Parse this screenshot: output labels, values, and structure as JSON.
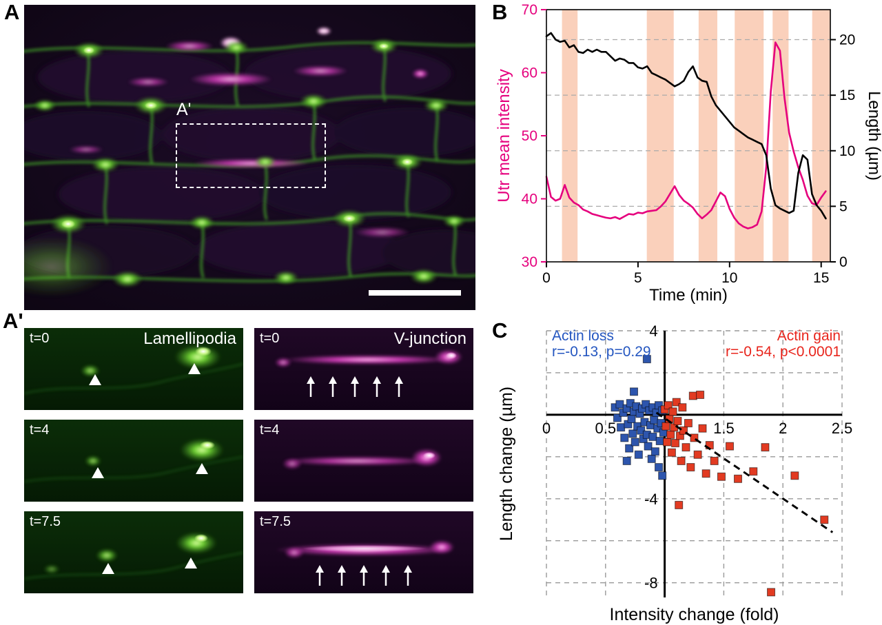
{
  "figure": {
    "panel_a_label": "A",
    "panel_a_inset_label": "A'",
    "panel_a_prime_label": "A'",
    "panel_b_label": "B",
    "panel_c_label": "C"
  },
  "a_prime": {
    "left_title": "Lamellipodia",
    "right_title": "V-junction",
    "timepoints": [
      "t=0",
      "t=4",
      "t=7.5"
    ]
  },
  "icons": {
    "arrowhead": "white-up-triangle-marker",
    "up_arrow": "white-up-arrow-marker"
  },
  "colors": {
    "magenta_channel": "#cc3bb4",
    "green_channel": "#6fcf33",
    "band": "#fad0bb",
    "utr_line": "#e5007d",
    "length_line": "#000000",
    "actin_loss": "#2d55ad",
    "actin_gain": "#e23b22"
  },
  "chart_data": [
    {
      "id": "utr-length-timecourse",
      "type": "line",
      "title": "",
      "xlabel": "Time (min)",
      "ylabel_left": "Utr mean intensity",
      "ylabel_right": "Length (µm)",
      "xlim": [
        0,
        15.5
      ],
      "ylim_left": [
        30,
        70
      ],
      "ylim_right": [
        0,
        22.7
      ],
      "xticks": [
        0,
        5,
        10,
        15
      ],
      "yticks_left": [
        30,
        40,
        50,
        60,
        70
      ],
      "yticks_right": [
        0,
        5,
        10,
        15,
        20
      ],
      "grid": "dashed-horizontal-at-right-ticks",
      "left_axis_color": "#e5007d",
      "right_axis_color": "#000000",
      "band_color": "#fad0bb",
      "shaded_bands_x": [
        [
          0.85,
          1.7
        ],
        [
          5.48,
          6.95
        ],
        [
          8.31,
          9.33
        ],
        [
          10.28,
          11.86
        ],
        [
          12.35,
          13.22
        ],
        [
          14.51,
          15.5
        ]
      ],
      "x": {
        "start": 0,
        "step": 0.25,
        "n": 62
      },
      "series": [
        {
          "name": "Utr mean intensity",
          "axis": "left",
          "color": "#e5007d",
          "values": [
            43.5,
            40.3,
            39.7,
            40.0,
            42.2,
            40.2,
            39.4,
            39.0,
            38.3,
            38.0,
            37.6,
            37.4,
            37.2,
            37.0,
            36.9,
            37.1,
            36.8,
            37.2,
            37.6,
            37.5,
            37.8,
            37.7,
            38.0,
            38.1,
            38.2,
            38.8,
            39.6,
            40.8,
            42.0,
            40.6,
            39.7,
            39.2,
            38.6,
            37.6,
            36.9,
            37.5,
            38.2,
            39.6,
            41.0,
            40.4,
            38.4,
            37.0,
            36.1,
            35.6,
            35.3,
            35.5,
            35.9,
            38.0,
            45.0,
            57.0,
            64.8,
            63.5,
            56.0,
            50.5,
            47.5,
            45.0,
            43.0,
            40.5,
            39.3,
            39.0,
            40.2,
            41.2
          ]
        },
        {
          "name": "Length",
          "axis": "right",
          "color": "#000000",
          "values": [
            20.3,
            20.6,
            20.0,
            19.8,
            19.9,
            19.3,
            19.5,
            18.9,
            18.8,
            19.1,
            18.9,
            19.1,
            18.9,
            18.9,
            18.5,
            18.1,
            18.3,
            18.2,
            17.9,
            17.9,
            17.5,
            17.4,
            17.6,
            17.0,
            16.8,
            16.6,
            16.4,
            16.1,
            15.8,
            16.0,
            16.3,
            17.1,
            17.6,
            16.6,
            16.3,
            16.2,
            14.9,
            14.1,
            13.6,
            13.1,
            12.6,
            12.1,
            11.8,
            11.5,
            11.2,
            11.0,
            10.8,
            10.6,
            9.6,
            6.6,
            5.1,
            4.8,
            4.6,
            4.4,
            4.6,
            8.0,
            9.6,
            9.2,
            6.1,
            5.1,
            4.6,
            3.9
          ]
        }
      ]
    },
    {
      "id": "length-vs-intensity-scatter",
      "type": "scatter",
      "title": "",
      "xlabel": "Intensity change (fold)",
      "ylabel": "Length change (µm)",
      "xlim": [
        0,
        2.5
      ],
      "ylim": [
        -8.7,
        4
      ],
      "xticks": [
        0,
        0.5,
        1,
        1.5,
        2,
        2.5
      ],
      "xtick_labels": [
        "0",
        "0.5",
        "",
        "1.5",
        "2",
        "2.5"
      ],
      "yticks": [
        4,
        2,
        0,
        -2,
        -4,
        -6,
        -8
      ],
      "ytick_labels": [
        "4",
        "",
        "",
        "",
        "-4",
        "",
        "-8"
      ],
      "axes_cross": [
        1,
        0
      ],
      "grid": "dashed",
      "trendline": {
        "x": [
          0.93,
          2.42
        ],
        "y": [
          0.1,
          -5.6
        ],
        "style": "dashed",
        "color": "#000000"
      },
      "series": [
        {
          "name": "Actin loss",
          "stats": "r=-0.13, p=0.29",
          "color": "#2d55ad",
          "label_color": "#2456c0",
          "points": [
            [
              0.58,
              0.35
            ],
            [
              0.6,
              -0.15
            ],
            [
              0.62,
              0.5
            ],
            [
              0.63,
              -0.6
            ],
            [
              0.65,
              0.1
            ],
            [
              0.66,
              -1.1
            ],
            [
              0.68,
              0.3
            ],
            [
              0.69,
              -0.45
            ],
            [
              0.7,
              -1.6
            ],
            [
              0.71,
              0.55
            ],
            [
              0.72,
              -0.2
            ],
            [
              0.73,
              -0.9
            ],
            [
              0.74,
              0.15
            ],
            [
              0.74,
              1.1
            ],
            [
              0.75,
              -1.3
            ],
            [
              0.76,
              0.4
            ],
            [
              0.77,
              -0.55
            ],
            [
              0.78,
              -1.9
            ],
            [
              0.79,
              0.05
            ],
            [
              0.8,
              -0.75
            ],
            [
              0.81,
              0.3
            ],
            [
              0.82,
              -1.15
            ],
            [
              0.83,
              -0.35
            ],
            [
              0.84,
              0.5
            ],
            [
              0.85,
              2.65
            ],
            [
              0.85,
              -0.95
            ],
            [
              0.86,
              -1.5
            ],
            [
              0.87,
              0.2
            ],
            [
              0.88,
              -0.5
            ],
            [
              0.89,
              -2.1
            ],
            [
              0.9,
              0.35
            ],
            [
              0.9,
              -1.05
            ],
            [
              0.91,
              -0.25
            ],
            [
              0.92,
              -1.75
            ],
            [
              0.93,
              0.1
            ],
            [
              0.94,
              -0.65
            ],
            [
              0.95,
              -2.5
            ],
            [
              0.95,
              0.45
            ],
            [
              0.96,
              -1.25
            ],
            [
              0.97,
              -0.4
            ],
            [
              0.98,
              -2.9
            ],
            [
              0.98,
              0.2
            ],
            [
              0.99,
              -0.85
            ],
            [
              0.68,
              -2.2
            ]
          ]
        },
        {
          "name": "Actin gain",
          "stats": "r=-0.54, p<0.0001",
          "color": "#e23b22",
          "label_color": "#e8251c",
          "points": [
            [
              1.0,
              0.25
            ],
            [
              1.01,
              -0.55
            ],
            [
              1.02,
              -1.3
            ],
            [
              1.03,
              0.45
            ],
            [
              1.04,
              -0.2
            ],
            [
              1.05,
              -0.95
            ],
            [
              1.06,
              -1.8
            ],
            [
              1.07,
              0.15
            ],
            [
              1.08,
              -0.6
            ],
            [
              1.09,
              -1.35
            ],
            [
              1.1,
              0.6
            ],
            [
              1.11,
              -0.3
            ],
            [
              1.12,
              -4.3
            ],
            [
              1.13,
              -1.0
            ],
            [
              1.14,
              -2.2
            ],
            [
              1.15,
              0.35
            ],
            [
              1.16,
              -0.75
            ],
            [
              1.18,
              -1.55
            ],
            [
              1.2,
              -0.4
            ],
            [
              1.22,
              -2.5
            ],
            [
              1.24,
              0.9
            ],
            [
              1.25,
              -1.1
            ],
            [
              1.28,
              -1.9
            ],
            [
              1.3,
              0.95
            ],
            [
              1.32,
              -0.65
            ],
            [
              1.35,
              -2.8
            ],
            [
              1.38,
              -1.45
            ],
            [
              1.42,
              -2.2
            ],
            [
              1.48,
              -2.95
            ],
            [
              1.55,
              -1.5
            ],
            [
              1.62,
              -3.05
            ],
            [
              1.75,
              -2.7
            ],
            [
              1.85,
              -1.55
            ],
            [
              2.1,
              -2.9
            ],
            [
              2.35,
              -5.0
            ],
            [
              1.9,
              -8.45
            ]
          ]
        }
      ]
    }
  ]
}
